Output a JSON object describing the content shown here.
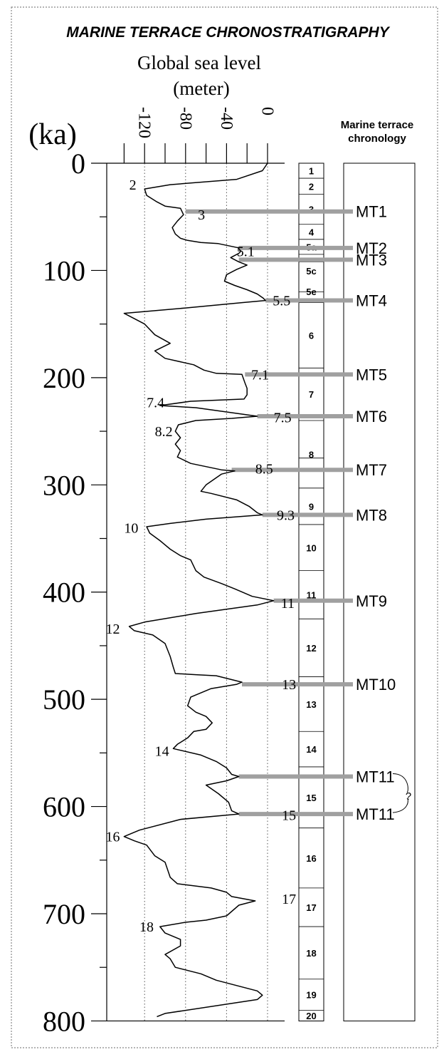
{
  "chart_data": {
    "type": "line",
    "title": "MARINE TERRACE CHRONOSTRATIGRAPHY",
    "xlabel_line1": "Global sea level",
    "xlabel_line2": "(meter)",
    "ylabel": "(ka)",
    "right_panel_title_line1": "Marine terrace",
    "right_panel_title_line2": "chronology",
    "xlim": [
      -140,
      20
    ],
    "ylim": [
      0,
      800
    ],
    "x_ticks": [
      "-120",
      "-80",
      "-40",
      "0"
    ],
    "x_tick_values": [
      -120,
      -80,
      -40,
      0
    ],
    "y_ticks": [
      "0",
      "100",
      "200",
      "300",
      "400",
      "500",
      "600",
      "700",
      "800"
    ],
    "y_tick_values": [
      0,
      100,
      200,
      300,
      400,
      500,
      600,
      700,
      800
    ],
    "grid": "vertical dotted",
    "series": [
      {
        "values": [
          [
            0,
            0
          ],
          [
            -5,
            7
          ],
          [
            -30,
            15
          ],
          [
            -95,
            20
          ],
          [
            -120,
            24
          ],
          [
            -118,
            30
          ],
          [
            -108,
            36
          ],
          [
            -100,
            40
          ],
          [
            -85,
            42
          ],
          [
            -82,
            48
          ],
          [
            -88,
            54
          ],
          [
            -93,
            60
          ],
          [
            -90,
            66
          ],
          [
            -85,
            70
          ],
          [
            -78,
            72
          ],
          [
            -65,
            74
          ],
          [
            -48,
            75
          ],
          [
            -38,
            77
          ],
          [
            -33,
            78
          ],
          [
            -28,
            79
          ],
          [
            -28,
            80
          ],
          [
            -26,
            82
          ],
          [
            -28,
            84
          ],
          [
            -32,
            86
          ],
          [
            -36,
            88
          ],
          [
            -32,
            90
          ],
          [
            -28,
            92
          ],
          [
            -20,
            95
          ],
          [
            -30,
            99
          ],
          [
            -40,
            104
          ],
          [
            -42,
            110
          ],
          [
            -32,
            114
          ],
          [
            -20,
            118
          ],
          [
            -10,
            122
          ],
          [
            -4,
            126
          ],
          [
            -2,
            128
          ],
          [
            -25,
            130
          ],
          [
            -80,
            135
          ],
          [
            -140,
            140
          ],
          [
            -120,
            150
          ],
          [
            -110,
            160
          ],
          [
            -95,
            168
          ],
          [
            -110,
            175
          ],
          [
            -100,
            182
          ],
          [
            -72,
            188
          ],
          [
            -62,
            193
          ],
          [
            -50,
            196
          ],
          [
            -25,
            197
          ],
          [
            -22,
            205
          ],
          [
            -20,
            210
          ],
          [
            -20,
            216
          ],
          [
            -23,
            220
          ],
          [
            -75,
            222
          ],
          [
            -105,
            226
          ],
          [
            -70,
            228
          ],
          [
            -40,
            232
          ],
          [
            -10,
            236
          ],
          [
            -35,
            238
          ],
          [
            -70,
            240
          ],
          [
            -87,
            244
          ],
          [
            -90,
            250
          ],
          [
            -85,
            256
          ],
          [
            -90,
            262
          ],
          [
            -85,
            268
          ],
          [
            -88,
            274
          ],
          [
            -75,
            280
          ],
          [
            -45,
            286
          ],
          [
            -32,
            287
          ],
          [
            -45,
            290
          ],
          [
            -60,
            300
          ],
          [
            -65,
            306
          ],
          [
            -55,
            308
          ],
          [
            -30,
            314
          ],
          [
            -18,
            320
          ],
          [
            -10,
            326
          ],
          [
            -5,
            328
          ],
          [
            -60,
            332
          ],
          [
            -95,
            336
          ],
          [
            -118,
            339
          ],
          [
            -115,
            345
          ],
          [
            -105,
            352
          ],
          [
            -95,
            360
          ],
          [
            -85,
            366
          ],
          [
            -75,
            370
          ],
          [
            -70,
            380
          ],
          [
            -62,
            386
          ],
          [
            -45,
            392
          ],
          [
            -32,
            397
          ],
          [
            -15,
            404
          ],
          [
            6,
            408
          ],
          [
            -10,
            412
          ],
          [
            -70,
            420
          ],
          [
            -120,
            428
          ],
          [
            -135,
            432
          ],
          [
            -130,
            436
          ],
          [
            -112,
            440
          ],
          [
            -100,
            448
          ],
          [
            -95,
            460
          ],
          [
            -92,
            470
          ],
          [
            -90,
            476
          ],
          [
            -70,
            477
          ],
          [
            -50,
            478
          ],
          [
            -25,
            484
          ],
          [
            -30,
            486
          ],
          [
            -55,
            490
          ],
          [
            -75,
            498
          ],
          [
            -78,
            506
          ],
          [
            -70,
            512
          ],
          [
            -60,
            516
          ],
          [
            -54,
            522
          ],
          [
            -60,
            528
          ],
          [
            -72,
            530
          ],
          [
            -78,
            536
          ],
          [
            -88,
            542
          ],
          [
            -92,
            546
          ],
          [
            -65,
            552
          ],
          [
            -50,
            558
          ],
          [
            -40,
            564
          ],
          [
            -35,
            570
          ],
          [
            -28,
            572
          ],
          [
            -40,
            576
          ],
          [
            -60,
            580
          ],
          [
            -48,
            588
          ],
          [
            -38,
            596
          ],
          [
            -35,
            604
          ],
          [
            -28,
            607
          ],
          [
            -85,
            612
          ],
          [
            -125,
            622
          ],
          [
            -140,
            628
          ],
          [
            -130,
            632
          ],
          [
            -118,
            636
          ],
          [
            -110,
            646
          ],
          [
            -100,
            652
          ],
          [
            -95,
            666
          ],
          [
            -88,
            672
          ],
          [
            -55,
            676
          ],
          [
            -40,
            680
          ],
          [
            -35,
            684
          ],
          [
            -12,
            688
          ],
          [
            -28,
            692
          ],
          [
            -40,
            702
          ],
          [
            -60,
            706
          ],
          [
            -80,
            708
          ],
          [
            -105,
            712
          ],
          [
            -100,
            718
          ],
          [
            -85,
            724
          ],
          [
            -85,
            730
          ],
          [
            -100,
            738
          ],
          [
            -95,
            742
          ],
          [
            -90,
            750
          ],
          [
            -65,
            756
          ],
          [
            -50,
            762
          ],
          [
            -10,
            772
          ],
          [
            -5,
            776
          ],
          [
            -10,
            780
          ],
          [
            -100,
            793
          ],
          [
            -108,
            796
          ]
        ]
      }
    ],
    "mis_labels_on_curve": [
      {
        "text": "2",
        "x": -135,
        "y": 20
      },
      {
        "text": "3",
        "x": -68,
        "y": 48
      },
      {
        "text": "5.1",
        "x": -30,
        "y": 82
      },
      {
        "text": "5.5",
        "x": 5,
        "y": 128
      },
      {
        "text": "7.1",
        "x": -16,
        "y": 197
      },
      {
        "text": "7.4",
        "x": -118,
        "y": 223
      },
      {
        "text": "7.5",
        "x": 6,
        "y": 237
      },
      {
        "text": "8.2",
        "x": -110,
        "y": 250
      },
      {
        "text": "8.5",
        "x": -12,
        "y": 285
      },
      {
        "text": "9.3",
        "x": 9,
        "y": 328
      },
      {
        "text": "10",
        "x": -140,
        "y": 340
      },
      {
        "text": "11",
        "x": 13,
        "y": 410
      },
      {
        "text": "12",
        "x": -158,
        "y": 434
      },
      {
        "text": "13",
        "x": 14,
        "y": 486
      },
      {
        "text": "14",
        "x": -110,
        "y": 548
      },
      {
        "text": "15",
        "x": 14,
        "y": 608
      },
      {
        "text": "16",
        "x": -158,
        "y": 628
      },
      {
        "text": "17",
        "x": 14,
        "y": 686
      },
      {
        "text": "18",
        "x": -125,
        "y": 712
      }
    ],
    "stage_boundaries": [
      0,
      14,
      29,
      57,
      71,
      85,
      92,
      120,
      130,
      191,
      240,
      275,
      303,
      337,
      380,
      425,
      479,
      530,
      563,
      620,
      676,
      712,
      761,
      790,
      800
    ],
    "stages": [
      {
        "label": "1",
        "from": 0,
        "to": 14
      },
      {
        "label": "2",
        "from": 14,
        "to": 29
      },
      {
        "label": "3",
        "from": 29,
        "to": 57
      },
      {
        "label": "4",
        "from": 57,
        "to": 71
      },
      {
        "label": "5a",
        "from": 71,
        "to": 85
      },
      {
        "label": "5c",
        "from": 92,
        "to": 109
      },
      {
        "label": "5e",
        "from": 109,
        "to": 130
      },
      {
        "label": "6",
        "from": 130,
        "to": 191
      },
      {
        "label": "7",
        "from": 191,
        "to": 240
      },
      {
        "label": "8",
        "from": 240,
        "to": 303
      },
      {
        "label": "9",
        "from": 303,
        "to": 337
      },
      {
        "label": "10",
        "from": 337,
        "to": 380
      },
      {
        "label": "11",
        "from": 380,
        "to": 425
      },
      {
        "label": "12",
        "from": 425,
        "to": 479
      },
      {
        "label": "13",
        "from": 479,
        "to": 530
      },
      {
        "label": "14",
        "from": 530,
        "to": 563
      },
      {
        "label": "15",
        "from": 563,
        "to": 620
      },
      {
        "label": "16",
        "from": 620,
        "to": 676
      },
      {
        "label": "17",
        "from": 676,
        "to": 712
      },
      {
        "label": "18",
        "from": 712,
        "to": 761
      },
      {
        "label": "19",
        "from": 761,
        "to": 790
      },
      {
        "label": "20",
        "from": 790,
        "to": 800
      }
    ],
    "terraces": [
      {
        "label": "MT1",
        "age": 45,
        "from_sea_level": -80
      },
      {
        "label": "MT2",
        "age": 79,
        "from_sea_level": -28
      },
      {
        "label": "MT3",
        "age": 90,
        "from_sea_level": -28
      },
      {
        "label": "MT4",
        "age": 128,
        "from_sea_level": -2
      },
      {
        "label": "MT5",
        "age": 197,
        "from_sea_level": -22
      },
      {
        "label": "MT6",
        "age": 236,
        "from_sea_level": -10
      },
      {
        "label": "MT7",
        "age": 286,
        "from_sea_level": -35
      },
      {
        "label": "MT8",
        "age": 328,
        "from_sea_level": -5
      },
      {
        "label": "MT9",
        "age": 408,
        "from_sea_level": 6
      },
      {
        "label": "MT10",
        "age": 486,
        "from_sea_level": -25
      },
      {
        "label": "MT11",
        "age": 572,
        "from_sea_level": -28
      },
      {
        "label": "MT11",
        "age": 607,
        "from_sea_level": -28
      }
    ],
    "uncertainty_mark": "?"
  },
  "colors": {
    "curve": "#000000",
    "terrace_band": "#a0a0a0",
    "grid": "#555555",
    "frame": "#888888"
  }
}
